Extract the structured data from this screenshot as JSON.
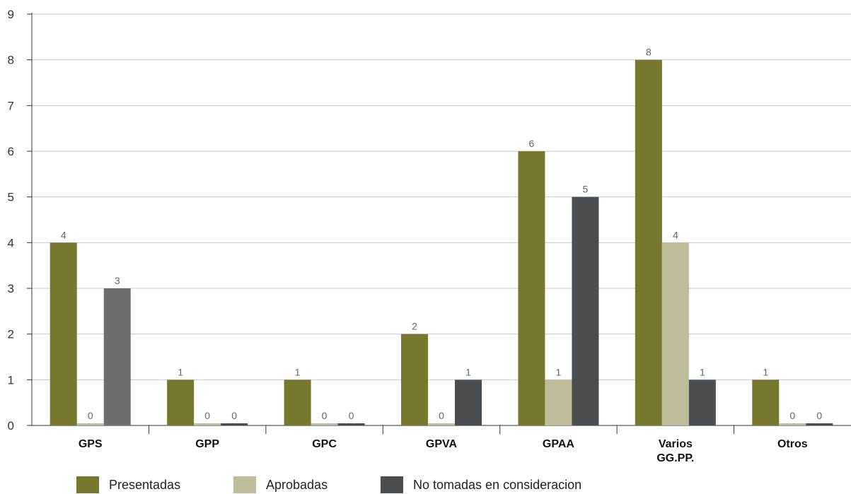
{
  "chart_data": {
    "type": "bar",
    "categories": [
      "GPS",
      "GPP",
      "GPC",
      "GPVA",
      "GPAA",
      "Varios\nGG.PP.",
      "Otros"
    ],
    "series": [
      {
        "name": "Presentadas",
        "color": "#77782e",
        "values": [
          4,
          1,
          1,
          2,
          6,
          8,
          1
        ]
      },
      {
        "name": "Aprobadas",
        "color": "#bfbc99",
        "values": [
          0,
          0,
          0,
          0,
          1,
          4,
          0
        ]
      },
      {
        "name": "No tomadas en consideracion",
        "color": "#4b4e50",
        "values": [
          3,
          0,
          0,
          1,
          5,
          1,
          0
        ]
      }
    ],
    "series_colors_override": {
      "No tomadas en consideracion": {
        "GPS": "#6d6e70"
      }
    },
    "ylim": [
      0,
      9
    ],
    "yticks": [
      0,
      1,
      2,
      3,
      4,
      5,
      6,
      7,
      8,
      9
    ],
    "grid": true,
    "legend_position": "bottom",
    "data_labels": true,
    "title": "",
    "xlabel": "",
    "ylabel": ""
  }
}
